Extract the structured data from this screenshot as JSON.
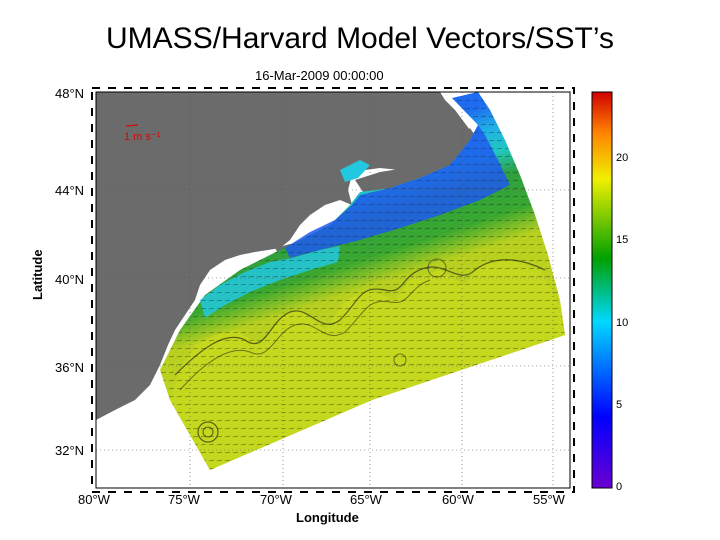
{
  "title": "UMASS/Harvard Model Vectors/SST’s",
  "timestamp": "16-Mar-2009 00:00:00",
  "axes": {
    "xlabel": "Longitude",
    "ylabel": "Latitude",
    "lat_ticks": [
      "48°N",
      "44°N",
      "40°N",
      "36°N",
      "32°N"
    ],
    "lon_ticks": [
      "80°W",
      "75°W",
      "70°W",
      "65°W",
      "60°W",
      "55°W"
    ]
  },
  "scale_vector": "1 m s⁻¹",
  "colorbar": {
    "ticks": [
      "20",
      "15",
      "10",
      "5",
      "0"
    ],
    "min": 0,
    "max": 24,
    "colors": [
      "#6a00d0",
      "#0000ff",
      "#00d8ff",
      "#00a000",
      "#f0f000",
      "#ff8000",
      "#d00000"
    ]
  },
  "colors": {
    "land": "#6b6b6b",
    "cold_water": "#1e50f0",
    "cyan_water": "#20d0e8",
    "green_water": "#2ea82e",
    "warm_water": "#c8d820"
  }
}
